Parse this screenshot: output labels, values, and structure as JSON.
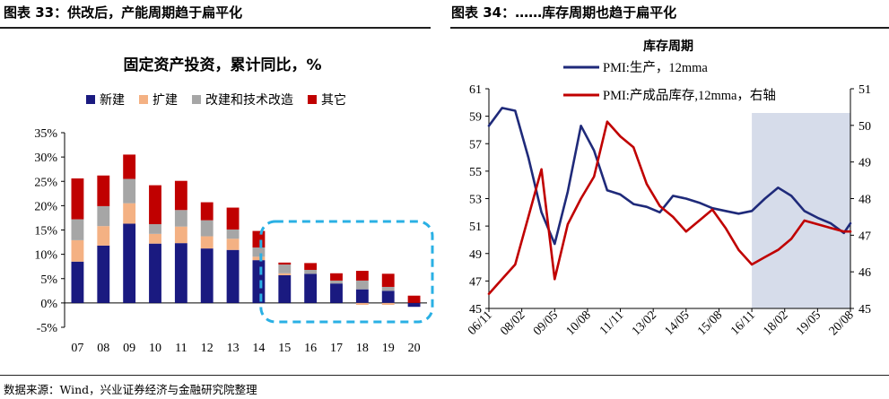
{
  "left_panel": {
    "caption": "图表 33：供改后，产能周期趋于扁平化"
  },
  "right_panel": {
    "caption": "图表 34：……库存周期也趋于扁平化"
  },
  "source": "数据来源：Wind，兴业证券经济与金融研究院整理",
  "chart_data": [
    {
      "type": "bar",
      "stacked": true,
      "title": "固定资产投资，累计同比，%",
      "categories": [
        "07",
        "08",
        "09",
        "10",
        "11",
        "12",
        "13",
        "14",
        "15",
        "16",
        "17",
        "18",
        "19",
        "20"
      ],
      "series": [
        {
          "name": "新建",
          "color": "#1a1a80",
          "values": [
            8.5,
            11.8,
            16.3,
            12.2,
            12.3,
            11.2,
            10.9,
            8.8,
            5.7,
            6.0,
            4.0,
            2.8,
            2.5,
            -0.8
          ]
        },
        {
          "name": "扩建",
          "color": "#f4b183",
          "values": [
            4.4,
            4.0,
            4.2,
            2.0,
            3.4,
            2.5,
            2.3,
            0.7,
            0.4,
            0.0,
            0.0,
            -0.4,
            -0.4,
            0.0
          ]
        },
        {
          "name": "改建和技术改造",
          "color": "#a6a6a6",
          "values": [
            4.3,
            4.1,
            5.0,
            2.0,
            3.4,
            3.3,
            1.9,
            1.9,
            1.8,
            0.8,
            0.6,
            1.8,
            0.8,
            0.0
          ]
        },
        {
          "name": "其它",
          "color": "#c00000",
          "values": [
            8.4,
            6.3,
            5.0,
            8.0,
            6.0,
            3.7,
            4.5,
            3.4,
            0.4,
            1.4,
            1.5,
            2.0,
            2.7,
            1.5
          ]
        }
      ],
      "ylim": [
        -5,
        35
      ],
      "yticks": [
        "-5%",
        "0%",
        "5%",
        "10%",
        "15%",
        "20%",
        "25%",
        "30%",
        "35%"
      ],
      "highlight_range": [
        "15",
        "20"
      ],
      "legend": "top"
    },
    {
      "type": "line",
      "title": "库存周期",
      "x": [
        "2006-11",
        "2007-05",
        "2007-11",
        "2008-05",
        "2008-11",
        "2009-05",
        "2009-11",
        "2010-05",
        "2010-11",
        "2011-05",
        "2011-11",
        "2012-05",
        "2012-11",
        "2013-05",
        "2013-11",
        "2014-05",
        "2014-11",
        "2015-05",
        "2015-11",
        "2016-05",
        "2016-11",
        "2017-05",
        "2017-11",
        "2018-05",
        "2018-11",
        "2019-05",
        "2019-11",
        "2020-05",
        "2020-08"
      ],
      "xticks": [
        "06/11",
        "08/02",
        "09/05",
        "10/08",
        "11/11",
        "13/02",
        "14/05",
        "15/08",
        "16/11",
        "18/02",
        "19/05",
        "20/08"
      ],
      "series": [
        {
          "name": "PMI:生产，12mma",
          "axis": "left",
          "color": "#1f2a7a",
          "values": [
            58.3,
            59.6,
            59.4,
            56.0,
            52.0,
            49.7,
            53.5,
            58.3,
            56.5,
            53.6,
            53.3,
            52.6,
            52.4,
            52.0,
            53.2,
            53.0,
            52.7,
            52.3,
            52.1,
            51.9,
            52.1,
            53.0,
            53.8,
            53.2,
            52.1,
            51.6,
            51.2,
            50.5,
            51.2
          ]
        },
        {
          "name": "PMI:产成品库存,12mma，右轴",
          "axis": "right",
          "color": "#c00000",
          "values": [
            45.4,
            45.8,
            46.2,
            47.5,
            48.8,
            45.8,
            47.3,
            48.0,
            48.6,
            50.1,
            49.7,
            49.4,
            48.4,
            47.8,
            47.5,
            47.1,
            47.4,
            47.7,
            47.2,
            46.6,
            46.2,
            46.4,
            46.6,
            46.9,
            47.4,
            47.3,
            47.2,
            47.1,
            47.1
          ]
        }
      ],
      "ylim_left": [
        45,
        61
      ],
      "yticks_left": [
        45,
        47,
        49,
        51,
        53,
        55,
        57,
        59,
        61
      ],
      "ylim_right": [
        45,
        51
      ],
      "yticks_right": [
        45,
        46,
        47,
        48,
        49,
        50,
        51
      ],
      "shaded_range": [
        "2016-11",
        "2020-08"
      ],
      "shade_color": "#d6dcea",
      "legend": "top-left"
    }
  ]
}
